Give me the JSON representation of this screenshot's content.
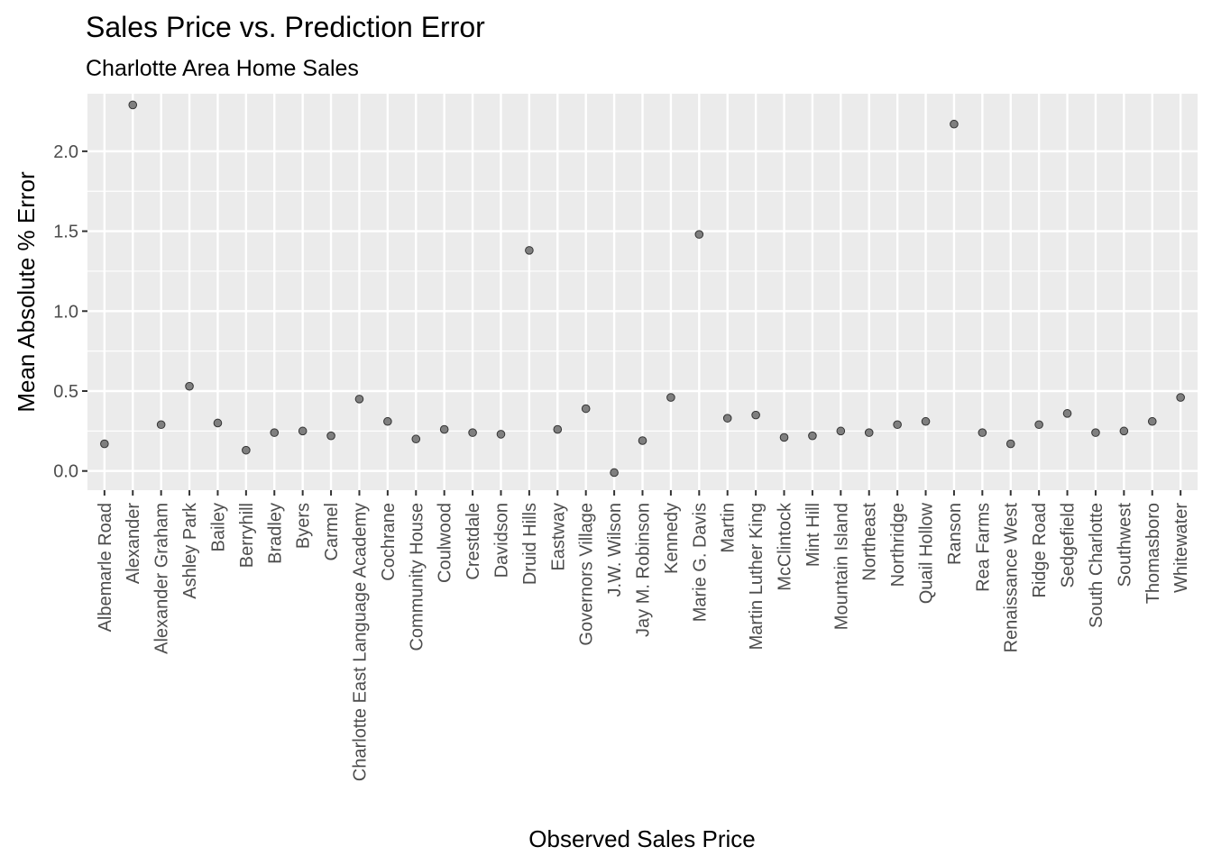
{
  "chart_data": {
    "type": "scatter",
    "title": "Sales Price vs. Prediction Error",
    "subtitle": "Charlotte Area Home Sales",
    "xlabel": "Observed Sales Price",
    "ylabel": "Mean Absolute % Error",
    "ylim": [
      -0.12,
      2.36
    ],
    "yticks": [
      0.0,
      0.5,
      1.0,
      1.5,
      2.0
    ],
    "ytick_labels": [
      "0.0",
      "0.5",
      "1.0",
      "1.5",
      "2.0"
    ],
    "grid": true,
    "categories": [
      "Albemarle Road",
      "Alexander",
      "Alexander Graham",
      "Ashley Park",
      "Bailey",
      "Berryhill",
      "Bradley",
      "Byers",
      "Carmel",
      "Charlotte East Language Academy",
      "Cochrane",
      "Community House",
      "Coulwood",
      "Crestdale",
      "Davidson",
      "Druid Hills",
      "Eastway",
      "Governors Village",
      "J.W. Wilson",
      "Jay M. Robinson",
      "Kennedy",
      "Marie G. Davis",
      "Martin",
      "Martin Luther King",
      "McClintock",
      "Mint Hill",
      "Mountain Island",
      "Northeast",
      "Northridge",
      "Quail Hollow",
      "Ranson",
      "Rea Farms",
      "Renaissance West",
      "Ridge Road",
      "Sedgefield",
      "South Charlotte",
      "Southwest",
      "Thomasboro",
      "Whitewater"
    ],
    "values": [
      0.17,
      2.29,
      0.29,
      0.53,
      0.3,
      0.13,
      0.24,
      0.25,
      0.22,
      0.45,
      0.31,
      0.2,
      0.26,
      0.24,
      0.23,
      1.38,
      0.26,
      0.39,
      -0.01,
      0.19,
      0.46,
      1.48,
      0.33,
      0.35,
      0.21,
      0.22,
      0.25,
      0.24,
      0.29,
      0.31,
      2.17,
      0.24,
      0.17,
      0.29,
      0.36,
      0.24,
      0.25,
      0.31,
      0.46
    ],
    "colors": {
      "panel": "#ebebeb",
      "grid_major": "#ffffff",
      "point_fill": "#7f7f7f",
      "point_stroke": "#333333",
      "tick": "#333333",
      "tick_label": "#4d4d4d"
    }
  }
}
